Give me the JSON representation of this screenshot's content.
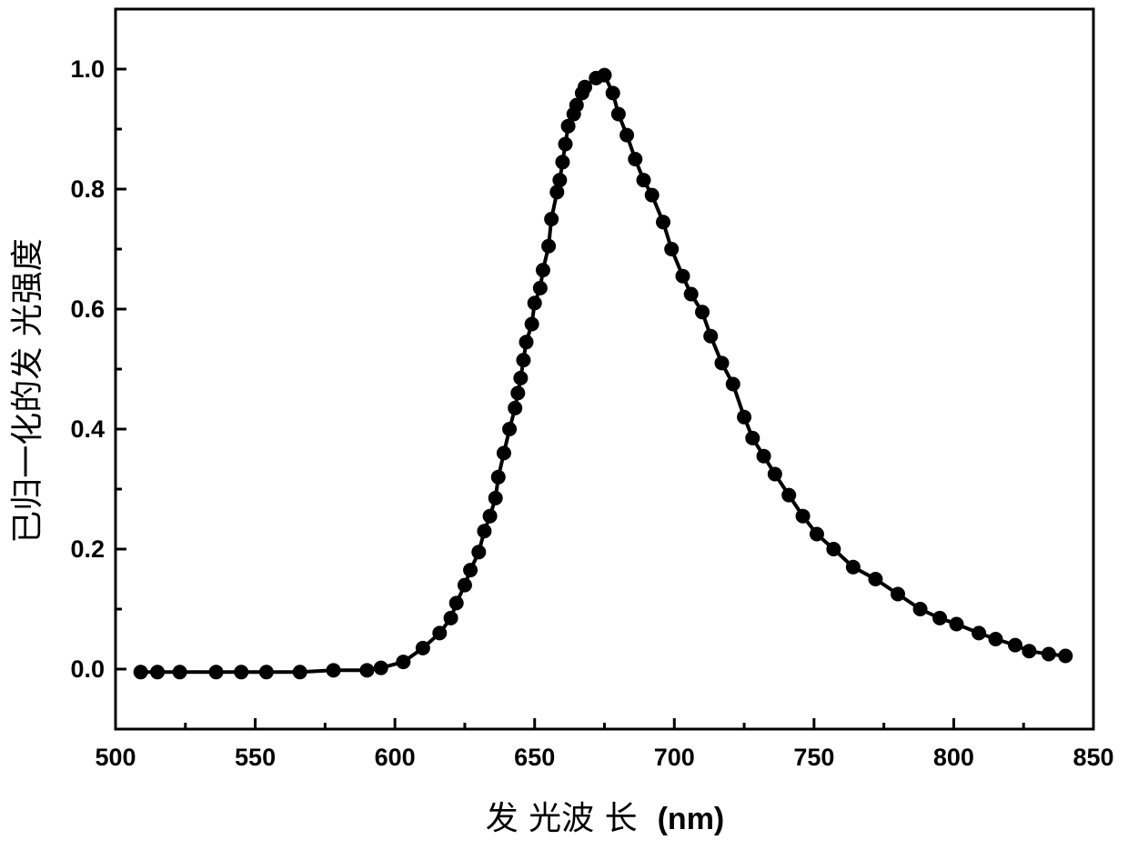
{
  "chart_data": {
    "type": "line",
    "xlabel": "发 光波 长 (nm)",
    "xlabel_main": "发 光波 长",
    "xlabel_unit": "(nm)",
    "ylabel": "已归一化的发 光强度",
    "xlim": [
      500,
      850
    ],
    "ylim": [
      -0.1,
      1.1
    ],
    "xticks": [
      500,
      550,
      600,
      650,
      700,
      750,
      800,
      850
    ],
    "xtick_labels": [
      "500",
      "550",
      "600",
      "650",
      "700",
      "750",
      "800",
      "850"
    ],
    "yticks": [
      0.0,
      0.2,
      0.4,
      0.6,
      0.8,
      1.0
    ],
    "ytick_labels": [
      "0.0",
      "0.2",
      "0.4",
      "0.6",
      "0.8",
      "1.0"
    ],
    "marker": "filled-circle",
    "line_color": "#000000",
    "grid": false,
    "series": [
      {
        "x": [
          509,
          515,
          523,
          536,
          545,
          554,
          566,
          578,
          590,
          595,
          603,
          610,
          616,
          620,
          622,
          625,
          627,
          630,
          632,
          634,
          636,
          637,
          639,
          641,
          643,
          644,
          645,
          646,
          647,
          649,
          650,
          652,
          653,
          655,
          656,
          658,
          659,
          660,
          661,
          662,
          664,
          665,
          667,
          668,
          672,
          675,
          678,
          680,
          683,
          686,
          689,
          692,
          696,
          699,
          703,
          706,
          710,
          713,
          717,
          721,
          725,
          728,
          732,
          736,
          741,
          746,
          751,
          757,
          764,
          772,
          780,
          788,
          795,
          801,
          809,
          815,
          822,
          827,
          834,
          840
        ],
        "y": [
          -0.005,
          -0.005,
          -0.005,
          -0.005,
          -0.005,
          -0.005,
          -0.005,
          -0.002,
          -0.002,
          0.002,
          0.012,
          0.035,
          0.06,
          0.085,
          0.11,
          0.14,
          0.165,
          0.195,
          0.23,
          0.255,
          0.285,
          0.32,
          0.36,
          0.4,
          0.435,
          0.46,
          0.485,
          0.515,
          0.545,
          0.575,
          0.61,
          0.635,
          0.665,
          0.705,
          0.75,
          0.795,
          0.815,
          0.845,
          0.875,
          0.905,
          0.925,
          0.94,
          0.96,
          0.97,
          0.985,
          0.99,
          0.96,
          0.925,
          0.89,
          0.85,
          0.815,
          0.79,
          0.745,
          0.7,
          0.655,
          0.625,
          0.595,
          0.555,
          0.51,
          0.475,
          0.42,
          0.385,
          0.355,
          0.325,
          0.29,
          0.255,
          0.225,
          0.2,
          0.17,
          0.15,
          0.125,
          0.1,
          0.085,
          0.075,
          0.06,
          0.05,
          0.04,
          0.03,
          0.025,
          0.022
        ]
      }
    ]
  }
}
